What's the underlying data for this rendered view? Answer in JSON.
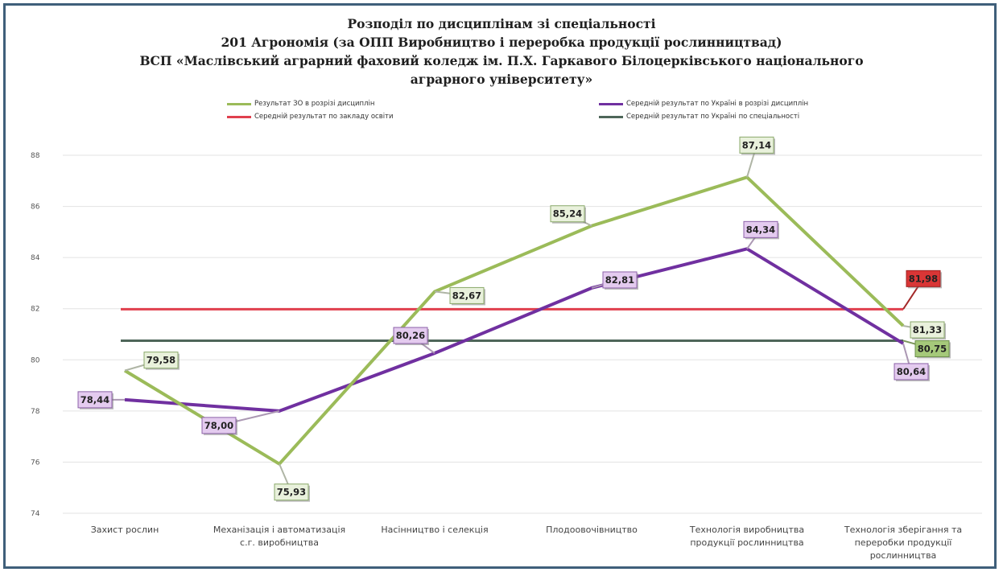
{
  "chart_data": {
    "type": "line",
    "title_lines": [
      "Розподіл по дисциплінам зі спеціальності",
      "201 Агрономія (за ОПП Виробництво і переробка продукції рослинництвад)",
      "ВСП «Маслівський аграрний фаховий коледж ім. П.Х. Гаркавого  Білоцерківського національного",
      "аграрного університету»"
    ],
    "categories": [
      "Захист рослин",
      "Механізація і автоматизація с.г. виробництва",
      "Насінництво і селекція",
      "Плодоовочівництво",
      "Технологія виробництва продукції рослинництва",
      "Технологія зберігання та переробки продукції рослинництва"
    ],
    "category_lines": [
      [
        "Захист рослин"
      ],
      [
        "Механізація і автоматизація",
        "с.г. виробництва"
      ],
      [
        "Насінництво і селекція"
      ],
      [
        "Плодоовочівництво"
      ],
      [
        "Технологія виробництва",
        "продукції рослинництва"
      ],
      [
        "Технологія зберігання та",
        "переробки продукції",
        "рослинництва"
      ]
    ],
    "y_ticks": [
      "88",
      "86",
      "84",
      "82",
      "80",
      "78",
      "76",
      "74"
    ],
    "ylim": [
      74,
      88
    ],
    "grid": true,
    "legend_position": "top",
    "series": [
      {
        "name": "Результат ЗО в розрізі дисциплін",
        "color": "#9bbb59",
        "values": [
          79.58,
          75.93,
          82.67,
          85.24,
          87.14,
          81.33
        ],
        "labels": [
          "79,58",
          "75,93",
          "82,67",
          "85,24",
          "87,14",
          "81,33"
        ]
      },
      {
        "name": "Середній результат по Україні в розрізі дисциплін",
        "color": "#7030a0",
        "values": [
          78.44,
          78.0,
          80.26,
          82.81,
          84.34,
          80.64
        ],
        "labels": [
          "78,44",
          "78,00",
          "80,26",
          "82,81",
          "84,34",
          "80,64"
        ]
      },
      {
        "name": "Середній результат по закладу освіти",
        "color": "#e0404e",
        "values": [
          81.98,
          81.98,
          81.98,
          81.98,
          81.98,
          81.98
        ],
        "end_label": "81,98"
      },
      {
        "name": "Середній результат по Україні по спеціальності",
        "color": "#4e6659",
        "values": [
          80.75,
          80.75,
          80.75,
          80.75,
          80.75,
          80.75
        ],
        "end_label": "80,75"
      }
    ]
  }
}
